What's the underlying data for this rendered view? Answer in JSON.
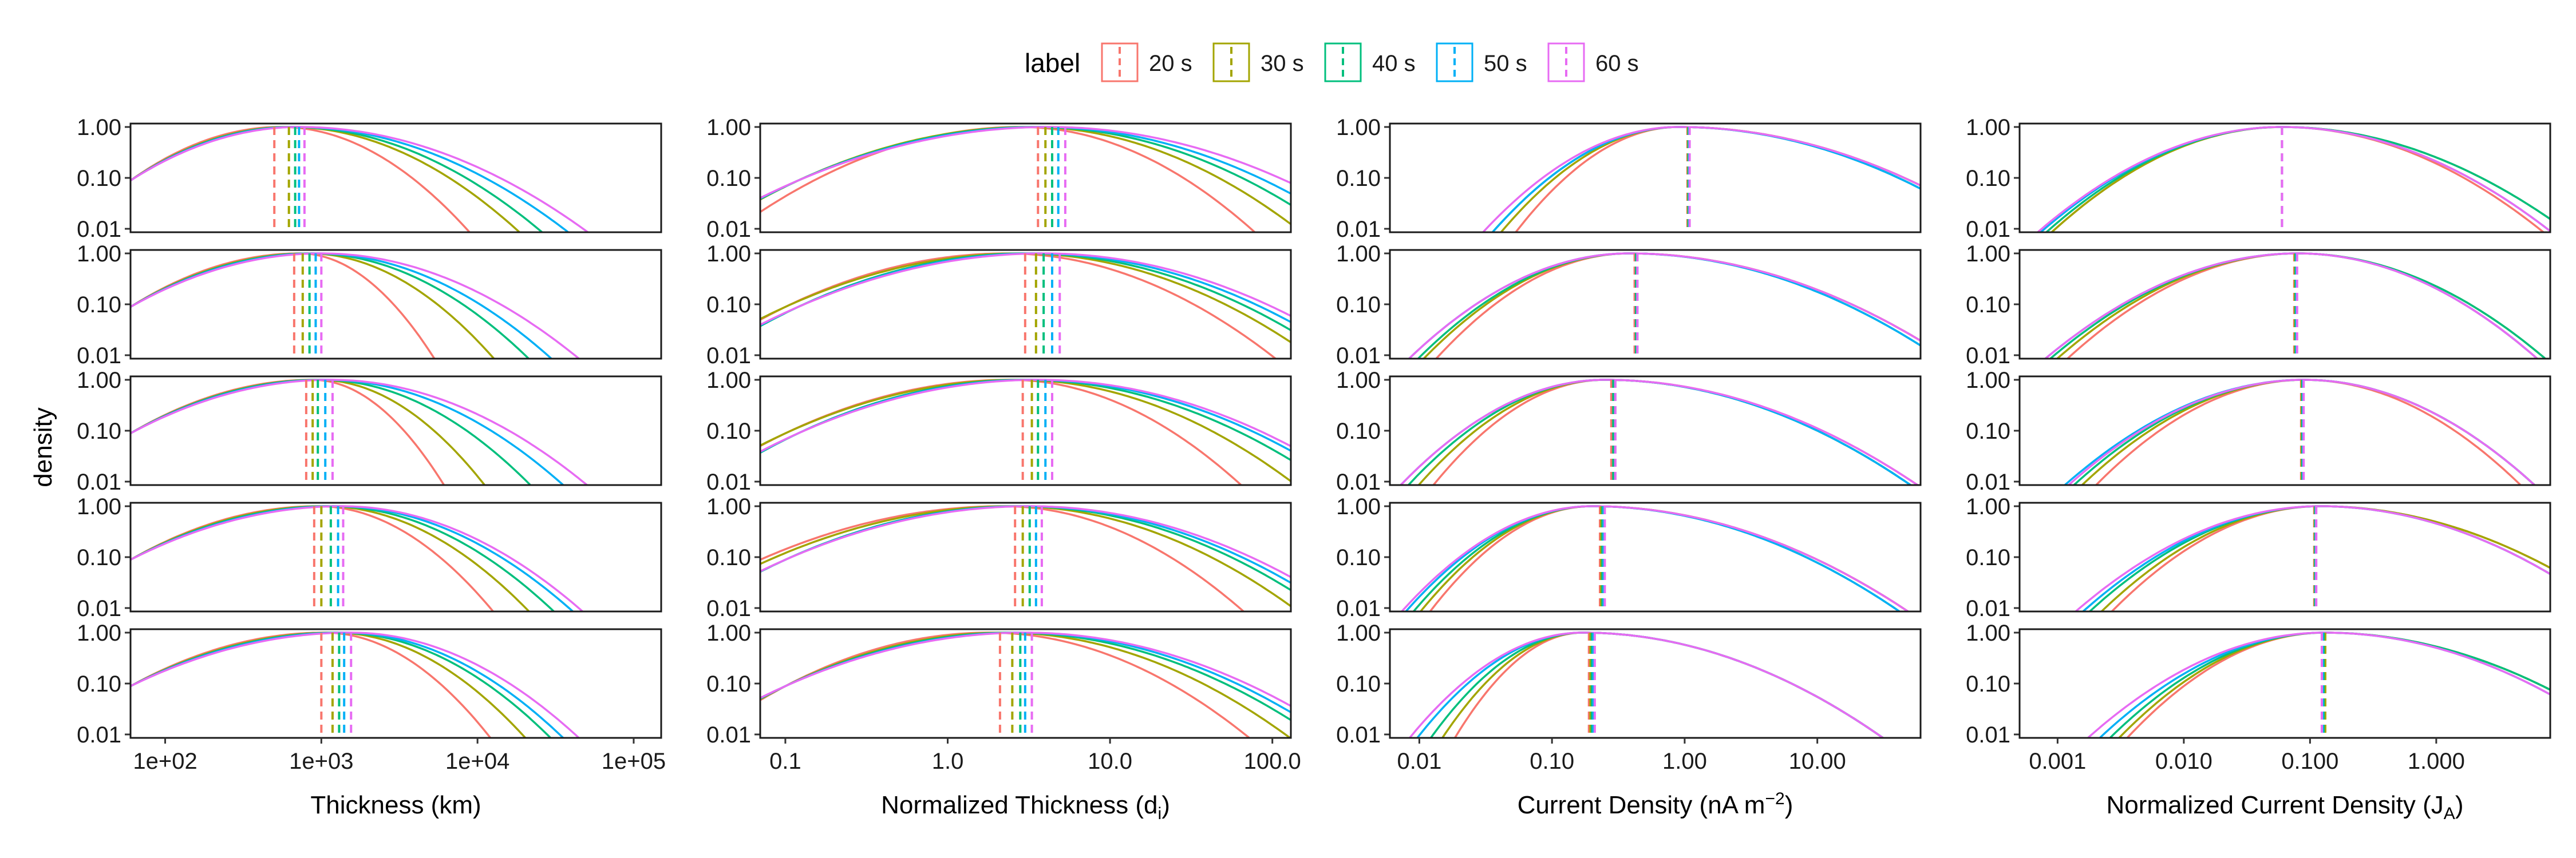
{
  "legend": {
    "title": "label",
    "items": [
      {
        "label": "20 s",
        "color": "#F8766D"
      },
      {
        "label": "30 s",
        "color": "#A3A500"
      },
      {
        "label": "40 s",
        "color": "#00BF7D"
      },
      {
        "label": "50 s",
        "color": "#00B0F6"
      },
      {
        "label": "60 s",
        "color": "#E76BF3"
      }
    ]
  },
  "y_axis": {
    "title": "density",
    "scale": "log10",
    "range": [
      0.01,
      1.0
    ],
    "tick_labels": [
      "1.00",
      "0.10",
      "0.01"
    ]
  },
  "chart_data": [
    {
      "type": "line",
      "chart_kind": "density-facets",
      "xlabel": "Thickness (km)",
      "xscale": "log10",
      "xlim": [
        60,
        150000
      ],
      "xticks": [
        100,
        1000,
        10000,
        100000
      ],
      "xtick_labels": [
        "1e+02",
        "1e+03",
        "1e+04",
        "1e+05"
      ],
      "series_peak": [
        [
          550,
          620,
          650,
          680,
          720
        ],
        [
          730,
          820,
          870,
          930,
          1000
        ],
        [
          880,
          960,
          1000,
          1080,
          1150
        ],
        [
          950,
          1050,
          1150,
          1250,
          1350
        ],
        [
          1050,
          1200,
          1300,
          1400,
          1550
        ]
      ],
      "series_low": [
        [
          60,
          60,
          60,
          60,
          60
        ],
        [
          60,
          60,
          60,
          60,
          60
        ],
        [
          60,
          60,
          60,
          60,
          60
        ],
        [
          60,
          60,
          60,
          60,
          60
        ],
        [
          60,
          60,
          60,
          60,
          60
        ]
      ],
      "series_high": [
        [
          4000,
          7000,
          9000,
          12000,
          15000
        ],
        [
          3000,
          5800,
          8500,
          11000,
          15000
        ],
        [
          3500,
          5500,
          9000,
          13000,
          17000
        ],
        [
          6000,
          9000,
          12000,
          15000,
          17000
        ],
        [
          6000,
          9000,
          12000,
          14000,
          17000
        ]
      ],
      "medians": [
        [
          500,
          620,
          680,
          720,
          780
        ],
        [
          670,
          760,
          840,
          920,
          1000
        ],
        [
          800,
          880,
          950,
          1060,
          1180
        ],
        [
          900,
          1000,
          1150,
          1280,
          1380
        ],
        [
          1000,
          1180,
          1300,
          1400,
          1550
        ]
      ]
    },
    {
      "type": "line",
      "chart_kind": "density-facets",
      "xlabel": "Normalized Thickness (d",
      "xlabel_sub": "i",
      "xlabel_end": ")",
      "xscale": "log10",
      "xlim": [
        0.07,
        130
      ],
      "xticks": [
        0.1,
        1,
        10,
        100
      ],
      "xtick_labels": [
        "0.1",
        "1.0",
        "10.0",
        "100.0"
      ],
      "series_peak": [
        [
          2.8,
          3.2,
          3.5,
          3.8,
          4.2
        ],
        [
          2.3,
          2.8,
          3.1,
          3.5,
          3.9
        ],
        [
          2.4,
          2.7,
          3.0,
          3.3,
          3.6
        ],
        [
          2.2,
          2.5,
          2.8,
          3.0,
          3.2
        ],
        [
          1.8,
          2.2,
          2.5,
          2.8,
          3.0
        ]
      ],
      "series_low": [
        [
          0.15,
          0.12,
          0.12,
          0.12,
          0.12
        ],
        [
          0.1,
          0.1,
          0.12,
          0.12,
          0.12
        ],
        [
          0.1,
          0.1,
          0.12,
          0.12,
          0.12
        ],
        [
          0.07,
          0.08,
          0.1,
          0.1,
          0.1
        ],
        [
          0.1,
          0.1,
          0.1,
          0.1,
          0.1
        ]
      ],
      "series_high": [
        [
          30,
          50,
          70,
          90,
          120
        ],
        [
          35,
          55,
          70,
          85,
          100
        ],
        [
          25,
          45,
          65,
          80,
          90
        ],
        [
          25,
          45,
          60,
          70,
          80
        ],
        [
          25,
          40,
          55,
          65,
          75
        ]
      ],
      "medians": [
        [
          3.6,
          4.0,
          4.4,
          4.8,
          5.3
        ],
        [
          3.0,
          3.5,
          3.9,
          4.4,
          4.9
        ],
        [
          2.9,
          3.3,
          3.6,
          4.0,
          4.4
        ],
        [
          2.6,
          2.9,
          3.2,
          3.5,
          3.8
        ],
        [
          2.1,
          2.5,
          2.8,
          3.0,
          3.3
        ]
      ]
    },
    {
      "type": "line",
      "chart_kind": "density-facets",
      "xlabel": "Current Density (nA m",
      "xlabel_sup": "−2",
      "xlabel_end": ")",
      "xscale": "log10",
      "xlim": [
        0.006,
        60
      ],
      "xticks": [
        0.01,
        0.1,
        1,
        10
      ],
      "xtick_labels": [
        "0.01",
        "0.10",
        "1.00",
        "10.00"
      ],
      "series_peak": [
        [
          0.9,
          0.9,
          0.9,
          0.9,
          0.9
        ],
        [
          0.38,
          0.38,
          0.38,
          0.38,
          0.38
        ],
        [
          0.25,
          0.25,
          0.25,
          0.25,
          0.25
        ],
        [
          0.2,
          0.2,
          0.2,
          0.2,
          0.2
        ],
        [
          0.17,
          0.17,
          0.17,
          0.17,
          0.17
        ]
      ],
      "series_low": [
        [
          0.12,
          0.1,
          0.09,
          0.09,
          0.08
        ],
        [
          0.035,
          0.03,
          0.028,
          0.025,
          0.025
        ],
        [
          0.03,
          0.025,
          0.022,
          0.02,
          0.02
        ],
        [
          0.027,
          0.024,
          0.022,
          0.02,
          0.019
        ],
        [
          0.035,
          0.03,
          0.026,
          0.022,
          0.02
        ]
      ],
      "series_high": [
        [
          50,
          50,
          45,
          45,
          50
        ],
        [
          20,
          20,
          18,
          18,
          20
        ],
        [
          12,
          11,
          11,
          11,
          12
        ],
        [
          10,
          10,
          9,
          9,
          10
        ],
        [
          7,
          7,
          7,
          7,
          7
        ]
      ],
      "medians": [
        [
          1.05,
          1.06,
          1.07,
          1.08,
          1.09
        ],
        [
          0.42,
          0.43,
          0.43,
          0.44,
          0.44
        ],
        [
          0.28,
          0.29,
          0.29,
          0.3,
          0.3
        ],
        [
          0.23,
          0.235,
          0.24,
          0.245,
          0.25
        ],
        [
          0.19,
          0.195,
          0.2,
          0.205,
          0.21
        ]
      ]
    },
    {
      "type": "line",
      "chart_kind": "density-facets",
      "xlabel": "Normalized Current Density (J",
      "xlabel_sub": "A",
      "xlabel_end": ")",
      "xscale": "log10",
      "xlim": [
        0.0005,
        8
      ],
      "xticks": [
        0.001,
        0.01,
        0.1,
        1
      ],
      "xtick_labels": [
        "0.001",
        "0.010",
        "0.100",
        "1.000"
      ],
      "series_peak": [
        [
          0.06,
          0.06,
          0.06,
          0.06,
          0.06
        ],
        [
          0.08,
          0.08,
          0.08,
          0.08,
          0.08
        ],
        [
          0.09,
          0.09,
          0.09,
          0.09,
          0.09
        ],
        [
          0.12,
          0.12,
          0.12,
          0.12,
          0.12
        ],
        [
          0.13,
          0.13,
          0.13,
          0.13,
          0.13
        ]
      ],
      "series_low": [
        [
          0.003,
          0.003,
          0.0028,
          0.0026,
          0.0025
        ],
        [
          0.004,
          0.0035,
          0.0032,
          0.003,
          0.003
        ],
        [
          0.006,
          0.005,
          0.0045,
          0.004,
          0.0042
        ],
        [
          0.008,
          0.007,
          0.006,
          0.0055,
          0.005
        ],
        [
          0.01,
          0.009,
          0.008,
          0.007,
          0.006
        ]
      ],
      "series_high": [
        [
          1.8,
          2.5,
          2.5,
          2.0,
          2.0
        ],
        [
          1.8,
          2.0,
          2.0,
          1.8,
          1.8
        ],
        [
          1.5,
          1.8,
          1.8,
          1.8,
          1.8
        ],
        [
          6,
          6,
          5,
          5,
          5
        ],
        [
          7,
          7,
          7,
          6,
          6
        ]
      ],
      "medians": [
        [
          0.06,
          0.06,
          0.06,
          0.06,
          0.06
        ],
        [
          0.075,
          0.076,
          0.077,
          0.078,
          0.079
        ],
        [
          0.085,
          0.086,
          0.087,
          0.088,
          0.089
        ],
        [
          0.108,
          0.109,
          0.11,
          0.111,
          0.112
        ],
        [
          0.13,
          0.132,
          0.128,
          0.126,
          0.124
        ]
      ]
    }
  ]
}
